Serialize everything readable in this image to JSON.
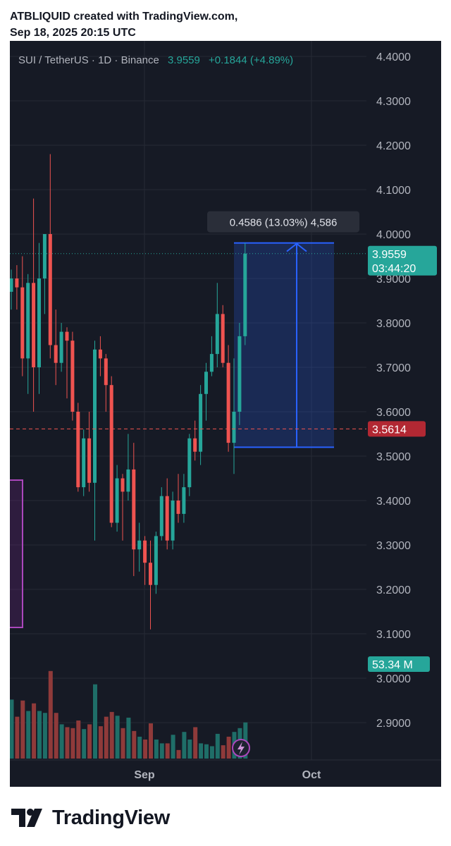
{
  "header": {
    "line1": "ATBLIQUID created with TradingView.com,",
    "line2": "Sep 18, 2025 20:15 UTC"
  },
  "legend": {
    "symbol": "SUI / TetherUS · 1D · Binance",
    "price": "3.9559",
    "change": "+0.1844 (+4.89%)"
  },
  "colors": {
    "up": "#26a69a",
    "down": "#ef5350",
    "volume_up": "#1f6e68",
    "volume_down": "#8f3a3a",
    "measure": "#2962ff",
    "background": "#161a25"
  },
  "badges": {
    "last_price": "3.9559",
    "countdown": "03:44:20",
    "level": "3.5614",
    "volume": "53.34 M"
  },
  "measure": {
    "label": "0.4586 (13.03%) 4,586",
    "from": 3.52,
    "to": 3.98
  },
  "footer": {
    "brand": "TradingView"
  },
  "chart_data": {
    "type": "candlestick",
    "price_axis": {
      "ticks": [
        "4.4000",
        "4.3000",
        "4.2000",
        "4.1000",
        "4.0000",
        "3.9000",
        "3.8000",
        "3.7000",
        "3.6000",
        "3.5000",
        "3.4000",
        "3.3000",
        "3.2000",
        "3.1000",
        "3.0000",
        "2.9000"
      ],
      "range": [
        2.82,
        4.42
      ]
    },
    "time_axis": {
      "ticks": [
        "Sep",
        "Oct"
      ]
    },
    "last_price": 3.9559,
    "level_line": 3.5614,
    "grid": true,
    "candles": [
      {
        "o": 3.87,
        "h": 3.92,
        "l": 3.83,
        "c": 3.9,
        "v": 0.62
      },
      {
        "o": 3.9,
        "h": 3.93,
        "l": 3.83,
        "c": 3.88,
        "v": 0.44
      },
      {
        "o": 3.88,
        "h": 3.95,
        "l": 3.68,
        "c": 3.72,
        "v": 0.61
      },
      {
        "o": 3.72,
        "h": 3.91,
        "l": 3.64,
        "c": 3.89,
        "v": 0.5
      },
      {
        "o": 3.89,
        "h": 4.08,
        "l": 3.6,
        "c": 3.7,
        "v": 0.58
      },
      {
        "o": 3.7,
        "h": 3.98,
        "l": 3.64,
        "c": 3.9,
        "v": 0.5
      },
      {
        "o": 3.9,
        "h": 4.0,
        "l": 3.82,
        "c": 4.0,
        "v": 0.48
      },
      {
        "o": 4.0,
        "h": 4.18,
        "l": 3.72,
        "c": 3.75,
        "v": 0.92
      },
      {
        "o": 3.75,
        "h": 3.83,
        "l": 3.66,
        "c": 3.71,
        "v": 0.48
      },
      {
        "o": 3.71,
        "h": 3.8,
        "l": 3.69,
        "c": 3.78,
        "v": 0.36
      },
      {
        "o": 3.78,
        "h": 3.79,
        "l": 3.63,
        "c": 3.76,
        "v": 0.33
      },
      {
        "o": 3.76,
        "h": 3.78,
        "l": 3.58,
        "c": 3.6,
        "v": 0.32
      },
      {
        "o": 3.6,
        "h": 3.62,
        "l": 3.42,
        "c": 3.43,
        "v": 0.4
      },
      {
        "o": 3.43,
        "h": 3.56,
        "l": 3.41,
        "c": 3.54,
        "v": 0.31
      },
      {
        "o": 3.54,
        "h": 3.6,
        "l": 3.42,
        "c": 3.44,
        "v": 0.36
      },
      {
        "o": 3.44,
        "h": 3.76,
        "l": 3.31,
        "c": 3.74,
        "v": 0.78
      },
      {
        "o": 3.74,
        "h": 3.77,
        "l": 3.68,
        "c": 3.72,
        "v": 0.34
      },
      {
        "o": 3.72,
        "h": 3.73,
        "l": 3.6,
        "c": 3.66,
        "v": 0.44
      },
      {
        "o": 3.66,
        "h": 3.68,
        "l": 3.34,
        "c": 3.35,
        "v": 0.49
      },
      {
        "o": 3.35,
        "h": 3.48,
        "l": 3.33,
        "c": 3.45,
        "v": 0.45
      },
      {
        "o": 3.45,
        "h": 3.46,
        "l": 3.31,
        "c": 3.42,
        "v": 0.32
      },
      {
        "o": 3.42,
        "h": 3.55,
        "l": 3.4,
        "c": 3.47,
        "v": 0.43
      },
      {
        "o": 3.47,
        "h": 3.53,
        "l": 3.23,
        "c": 3.29,
        "v": 0.29
      },
      {
        "o": 3.29,
        "h": 3.35,
        "l": 3.24,
        "c": 3.31,
        "v": 0.23
      },
      {
        "o": 3.31,
        "h": 3.32,
        "l": 3.21,
        "c": 3.26,
        "v": 0.2
      },
      {
        "o": 3.26,
        "h": 3.31,
        "l": 3.11,
        "c": 3.21,
        "v": 0.37
      },
      {
        "o": 3.21,
        "h": 3.33,
        "l": 3.19,
        "c": 3.32,
        "v": 0.2
      },
      {
        "o": 3.32,
        "h": 3.43,
        "l": 3.31,
        "c": 3.41,
        "v": 0.16
      },
      {
        "o": 3.41,
        "h": 3.45,
        "l": 3.29,
        "c": 3.31,
        "v": 0.16
      },
      {
        "o": 3.31,
        "h": 3.42,
        "l": 3.29,
        "c": 3.4,
        "v": 0.25
      },
      {
        "o": 3.4,
        "h": 3.46,
        "l": 3.35,
        "c": 3.37,
        "v": 0.09
      },
      {
        "o": 3.37,
        "h": 3.46,
        "l": 3.35,
        "c": 3.43,
        "v": 0.28
      },
      {
        "o": 3.43,
        "h": 3.55,
        "l": 3.41,
        "c": 3.54,
        "v": 0.2
      },
      {
        "o": 3.54,
        "h": 3.58,
        "l": 3.49,
        "c": 3.51,
        "v": 0.33
      },
      {
        "o": 3.51,
        "h": 3.66,
        "l": 3.48,
        "c": 3.64,
        "v": 0.16
      },
      {
        "o": 3.64,
        "h": 3.71,
        "l": 3.58,
        "c": 3.69,
        "v": 0.15
      },
      {
        "o": 3.69,
        "h": 3.77,
        "l": 3.68,
        "c": 3.73,
        "v": 0.13
      },
      {
        "o": 3.73,
        "h": 3.89,
        "l": 3.7,
        "c": 3.82,
        "v": 0.26
      },
      {
        "o": 3.82,
        "h": 3.84,
        "l": 3.7,
        "c": 3.71,
        "v": 0.14
      },
      {
        "o": 3.71,
        "h": 3.75,
        "l": 3.51,
        "c": 3.53,
        "v": 0.23
      },
      {
        "o": 3.53,
        "h": 3.72,
        "l": 3.46,
        "c": 3.6,
        "v": 0.28
      },
      {
        "o": 3.6,
        "h": 3.8,
        "l": 3.57,
        "c": 3.77,
        "v": 0.32
      },
      {
        "o": 3.77,
        "h": 3.98,
        "l": 3.75,
        "c": 3.9559,
        "v": 0.38
      }
    ]
  }
}
